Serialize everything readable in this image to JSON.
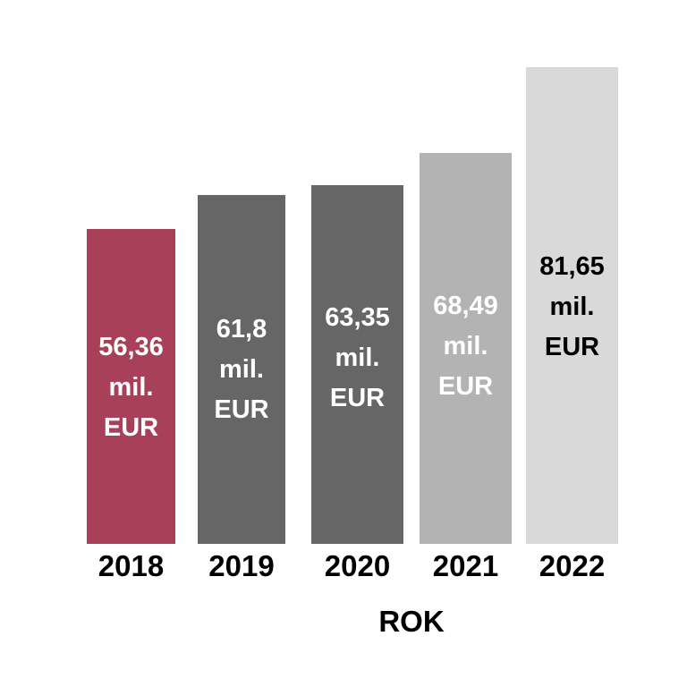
{
  "chart_data": {
    "type": "bar",
    "title": "",
    "xlabel": "ROK",
    "ylabel": "",
    "categories": [
      "2018",
      "2019",
      "2020",
      "2021",
      "2022"
    ],
    "values": [
      56.36,
      61.8,
      63.35,
      68.49,
      81.65
    ],
    "unit": "mil. EUR",
    "data_labels": [
      [
        "56,36",
        "mil.",
        "EUR"
      ],
      [
        "61,8",
        "mil.",
        "EUR"
      ],
      [
        "63,35",
        "mil.",
        "EUR"
      ],
      [
        "68,49",
        "mil.",
        "EUR"
      ],
      [
        "81,65",
        "mil.",
        "EUR"
      ]
    ],
    "colors": [
      "#A8405A",
      "#666666",
      "#666666",
      "#B3B3B3",
      "#D9D9D9"
    ],
    "label_colors": [
      "#FFFFFF",
      "#FFFFFF",
      "#FFFFFF",
      "#FFFFFF",
      "#000000"
    ],
    "grid": false
  }
}
